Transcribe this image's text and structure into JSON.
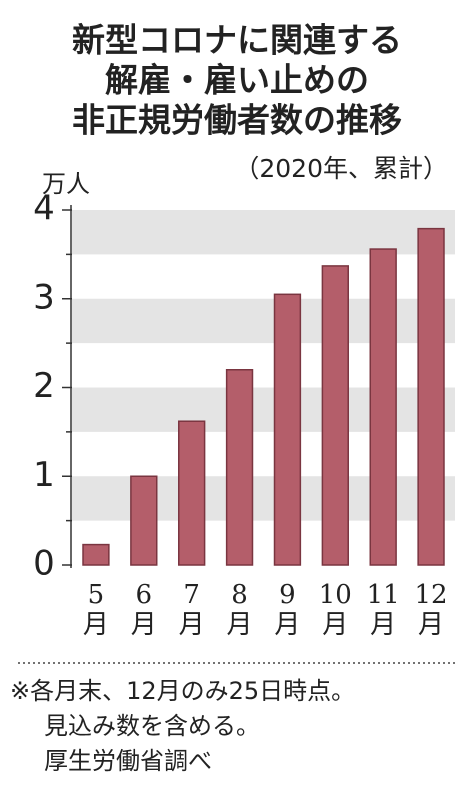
{
  "chart_data": {
    "type": "bar",
    "title": [
      "新型コロナに関連する",
      "解雇・雇い止めの",
      "非正規労働者数の推移"
    ],
    "subtitle": "（2020年、累計）",
    "unit_label": "万人",
    "categories": [
      "5月",
      "6月",
      "7月",
      "8月",
      "9月",
      "10月",
      "11月",
      "12月"
    ],
    "values": [
      0.23,
      1.0,
      1.62,
      2.2,
      3.05,
      3.37,
      3.56,
      3.79
    ],
    "color": "#b45e6a",
    "ylim": [
      0,
      4
    ],
    "yticks": [
      0,
      1,
      2,
      3,
      4
    ],
    "grid": true,
    "notes": [
      "※各月末、12月のみ25日時点。",
      "見込み数を含める。",
      "厚生労働省調べ"
    ]
  }
}
